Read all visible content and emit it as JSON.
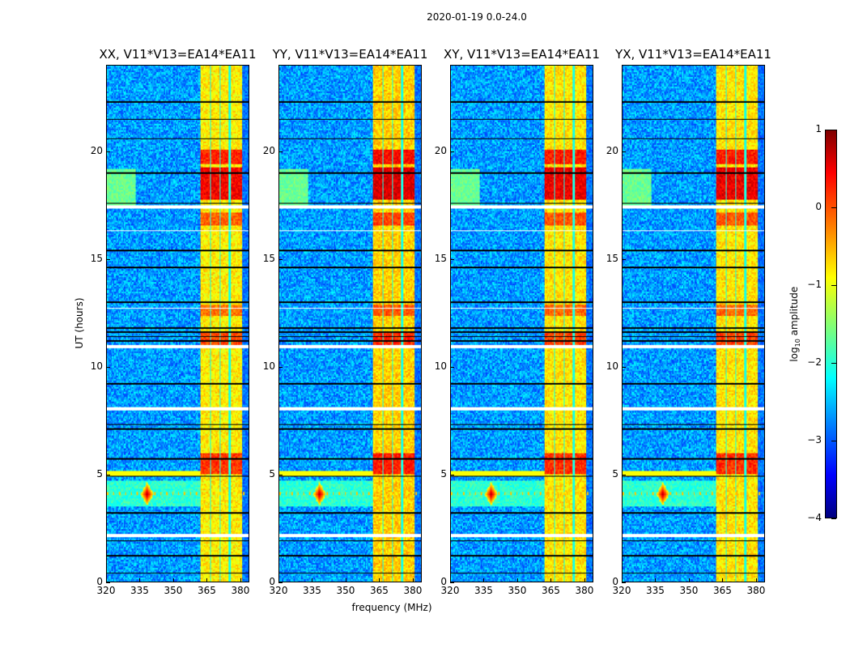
{
  "chart_data": {
    "type": "heatmap",
    "title": "2020-01-19 0.0-24.0",
    "xlabel": "frequency (MHz)",
    "ylabel": "UT (hours)",
    "xlim": [
      320,
      384
    ],
    "ylim": [
      0,
      24
    ],
    "xticks": [
      "320",
      "335",
      "350",
      "365",
      "380"
    ],
    "xtick_values": [
      320,
      335,
      350,
      365,
      380
    ],
    "yticks": [
      "0",
      "5",
      "10",
      "15",
      "20"
    ],
    "ytick_values": [
      0,
      5,
      10,
      15,
      20
    ],
    "colormap": "jet",
    "clim": [
      -4,
      1
    ],
    "colorbar": {
      "label": "log10 amplitude",
      "label_main": "log",
      "label_sub": "10",
      "label_rest": " amplitude",
      "ticks": [
        "1",
        "0",
        "−1",
        "−2",
        "−3",
        "−4"
      ],
      "tick_values": [
        1,
        0,
        -1,
        -2,
        -3,
        -4
      ]
    },
    "panels": [
      {
        "title": "XX, V11*V13=EA14*EA11",
        "offset": 0
      },
      {
        "title": "YY, V11*V13=EA14*EA11",
        "offset": 0.15
      },
      {
        "title": "XY, V11*V13=EA14*EA11",
        "offset": 0.05
      },
      {
        "title": "YX, V11*V13=EA14*EA11",
        "offset": 0.05
      }
    ],
    "features": {
      "background_level": -2.6,
      "band": {
        "freq": [
          362,
          381
        ],
        "level": -0.8,
        "gaps_mhz": [
          366.5,
          371,
          375.5
        ]
      },
      "hot_rows_hours": [
        [
          17.8,
          19.3,
          0.4
        ],
        [
          19.4,
          20.1,
          0.2
        ],
        [
          5.0,
          6.0,
          0.1
        ],
        [
          11.0,
          11.6,
          0.0
        ],
        [
          12.4,
          12.9,
          -0.2
        ],
        [
          16.6,
          17.2,
          -0.1
        ]
      ],
      "rfi_burst": {
        "freq": 338,
        "hour": 4.1,
        "level": 0.8
      },
      "broadband_rfi_hours": [
        3.6,
        4.6
      ],
      "flagged_white_hours": [
        [
          2.05,
          2.2
        ],
        [
          7.95,
          8.1
        ],
        [
          10.85,
          11.0
        ],
        [
          17.35,
          17.5
        ],
        [
          16.3,
          16.35
        ],
        [
          12.7,
          12.75
        ]
      ],
      "flagged_black_hours": [
        0.4,
        1.2,
        1.9,
        3.2,
        4.9,
        5.7,
        7.1,
        7.3,
        9.2,
        11.2,
        11.4,
        11.6,
        11.8,
        13.0,
        14.6,
        15.4,
        17.6,
        19.0,
        20.6,
        21.5,
        22.3
      ]
    }
  }
}
